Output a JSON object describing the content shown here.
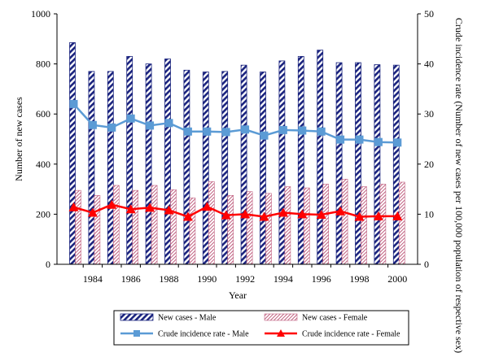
{
  "chart_data": {
    "type": "bar",
    "title": "",
    "xlabel": "Year",
    "ylabel": "Number of new cases",
    "y2label": "Crude incidence  rate (Number of new cases per 100,000 population of respective sex)",
    "ylim": [
      0,
      1000
    ],
    "y2lim": [
      0,
      50
    ],
    "yticks": [
      "0",
      "200",
      "400",
      "600",
      "800",
      "1000"
    ],
    "y2ticks": [
      "0",
      "10",
      "20",
      "30",
      "40",
      "50"
    ],
    "x": [
      1983,
      1984,
      1985,
      1986,
      1987,
      1988,
      1989,
      1990,
      1991,
      1992,
      1993,
      1994,
      1995,
      1996,
      1997,
      1998,
      1999,
      2000
    ],
    "xticks": [
      "1984",
      "1986",
      "1988",
      "1990",
      "1992",
      "1994",
      "1996",
      "1998",
      "2000"
    ],
    "legend_position": "bottom",
    "grid": false,
    "series": [
      {
        "name": "New cases - Male",
        "kind": "bar",
        "axis": "left",
        "color": "#1a237e",
        "values": [
          885,
          770,
          770,
          830,
          800,
          820,
          775,
          768,
          770,
          795,
          768,
          812,
          830,
          855,
          805,
          805,
          797,
          795
        ]
      },
      {
        "name": "New cases - Female",
        "kind": "bar",
        "axis": "left",
        "color": "#c06080",
        "values": [
          295,
          275,
          315,
          295,
          315,
          298,
          265,
          330,
          275,
          290,
          283,
          310,
          305,
          320,
          340,
          310,
          320,
          328
        ]
      },
      {
        "name": "Crude incidence rate - Male",
        "kind": "line",
        "axis": "right",
        "color": "#5b9bd5",
        "values": [
          32.0,
          27.8,
          27.3,
          29.1,
          27.7,
          28.2,
          26.5,
          26.5,
          26.4,
          26.9,
          25.7,
          26.8,
          26.7,
          26.5,
          24.9,
          24.9,
          24.4,
          24.3
        ]
      },
      {
        "name": "Crude incidence rate - Female",
        "kind": "line",
        "axis": "right",
        "color": "#ff0000",
        "values": [
          11.4,
          10.3,
          11.9,
          11.0,
          11.3,
          10.8,
          9.5,
          11.5,
          9.8,
          10.0,
          9.5,
          10.3,
          10.0,
          9.9,
          10.6,
          9.5,
          9.6,
          9.6
        ]
      }
    ]
  }
}
